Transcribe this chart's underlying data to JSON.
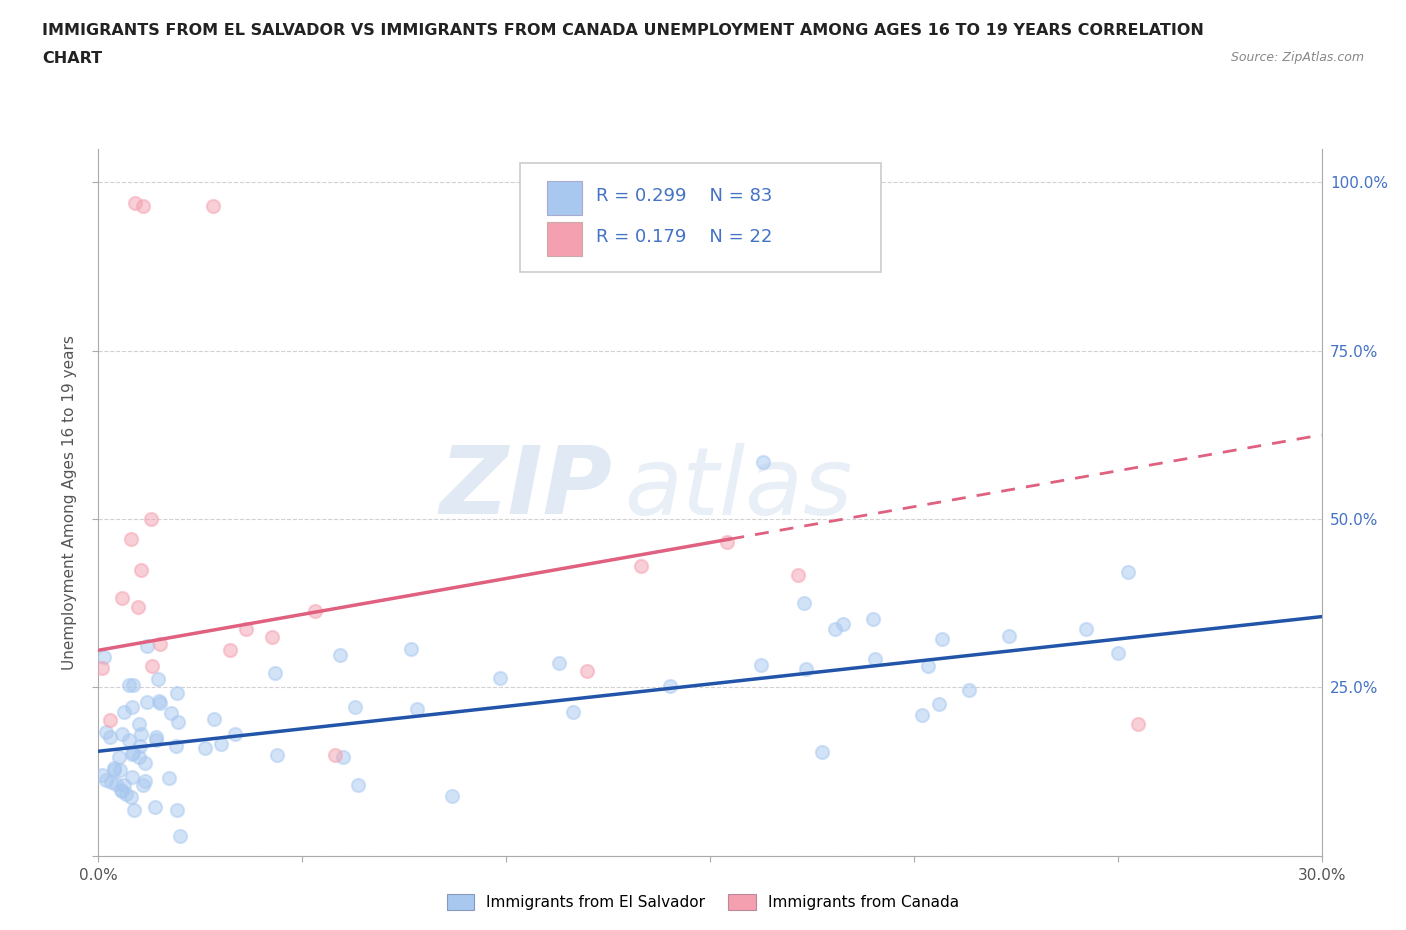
{
  "title_line1": "IMMIGRANTS FROM EL SALVADOR VS IMMIGRANTS FROM CANADA UNEMPLOYMENT AMONG AGES 16 TO 19 YEARS CORRELATION",
  "title_line2": "CHART",
  "source_text": "Source: ZipAtlas.com",
  "ylabel": "Unemployment Among Ages 16 to 19 years",
  "xlim": [
    0.0,
    0.3
  ],
  "ylim": [
    0.0,
    1.05
  ],
  "color_salvador": "#a8c8f0",
  "color_canada": "#f4a0b0",
  "trend_color_salvador": "#2255aa",
  "trend_color_canada": "#e06080",
  "r_salvador": 0.299,
  "n_salvador": 83,
  "r_canada": 0.179,
  "n_canada": 22,
  "watermark_zip": "ZIP",
  "watermark_atlas": "atlas",
  "legend_label_salvador": "Immigrants from El Salvador",
  "legend_label_canada": "Immigrants from Canada",
  "sal_trend_x0": 0.0,
  "sal_trend_y0": 0.155,
  "sal_trend_x1": 0.3,
  "sal_trend_y1": 0.355,
  "can_trend_x0": 0.0,
  "can_trend_y0": 0.305,
  "can_trend_x1": 0.3,
  "can_trend_y1": 0.625,
  "can_trend_solid_end": 0.155,
  "grid_color": "#cccccc",
  "axis_label_color": "#4472c4",
  "title_color": "#222222"
}
